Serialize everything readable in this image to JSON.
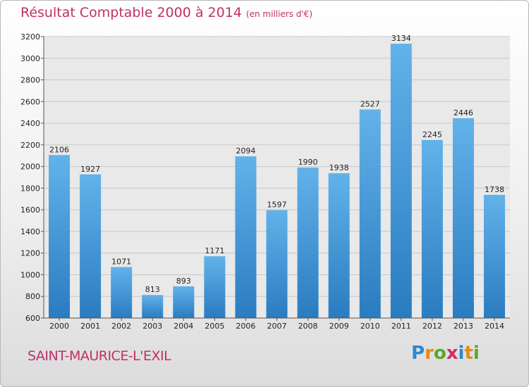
{
  "header": {
    "title": "Résultat Comptable 2000 à 2014",
    "unit": "(en milliers d'€)"
  },
  "footer": {
    "town": "SAINT-MAURICE-L'EXIL",
    "logo": {
      "letters": [
        "P",
        "r",
        "o",
        "x",
        "i",
        "t",
        "i"
      ],
      "colors": [
        "#2a8ad0",
        "#e48a1c",
        "#5aa82c",
        "#d02c6a",
        "#2a8ad0",
        "#e48a1c",
        "#5aa82c"
      ]
    }
  },
  "colors": {
    "bar_light": "#62b2ea",
    "bar_dark": "#2a7cc0",
    "title": "#c0306a",
    "grid": "#c8c8c8",
    "plot_bg": "#e9e9e9"
  },
  "chart_data": {
    "type": "bar",
    "title": "Résultat Comptable 2000 à 2014",
    "subtitle": "(en milliers d'€)",
    "xlabel": "",
    "ylabel": "",
    "categories": [
      "2000",
      "2001",
      "2002",
      "2003",
      "2004",
      "2005",
      "2006",
      "2007",
      "2008",
      "2009",
      "2010",
      "2011",
      "2012",
      "2013",
      "2014"
    ],
    "values": [
      2106,
      1927,
      1071,
      813,
      893,
      1171,
      2094,
      1597,
      1990,
      1938,
      2527,
      3134,
      2245,
      2446,
      1738
    ],
    "ylim": [
      600,
      3200
    ],
    "yticks": [
      600,
      800,
      1000,
      1200,
      1400,
      1600,
      1800,
      2000,
      2200,
      2400,
      2600,
      2800,
      3000,
      3200
    ],
    "grid": true,
    "data_labels": true
  }
}
